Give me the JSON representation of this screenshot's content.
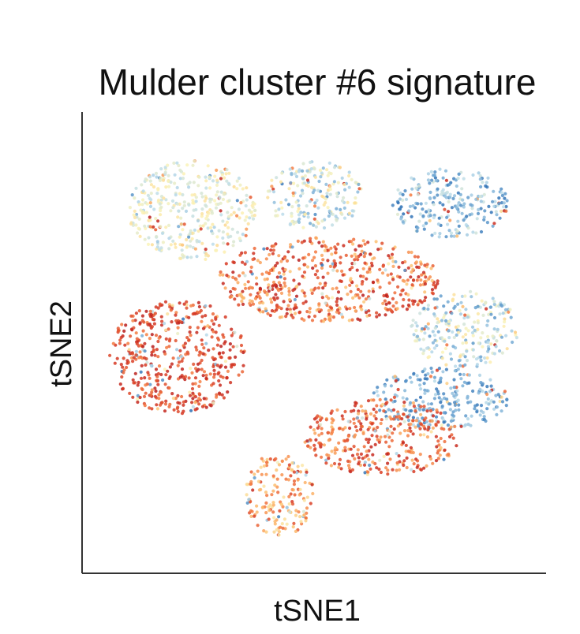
{
  "chart_data": {
    "type": "scatter",
    "title": "Mulder cluster #6 signature",
    "xlabel": "tSNE1",
    "ylabel": "tSNE2",
    "grid": false,
    "legend": "none",
    "ticks": "none",
    "color_scale": [
      "#2c6fb4",
      "#6ea6d2",
      "#bcdcea",
      "#fbf3b8",
      "#fdc374",
      "#f57d43",
      "#d73a24",
      "#b81e1e"
    ],
    "series": [
      {
        "region": "upper-left",
        "x": [
          -38,
          -12
        ],
        "y": [
          14,
          40
        ],
        "level": [
          0.25,
          0.5
        ]
      },
      {
        "region": "upper-center",
        "x": [
          -10,
          10
        ],
        "y": [
          22,
          40
        ],
        "level": [
          0.15,
          0.5
        ]
      },
      {
        "region": "upper-right",
        "x": [
          16,
          40
        ],
        "y": [
          20,
          38
        ],
        "level": [
          0.0,
          0.35
        ]
      },
      {
        "region": "center-band",
        "x": [
          -20,
          26
        ],
        "y": [
          -2,
          20
        ],
        "level": [
          0.55,
          1.0
        ]
      },
      {
        "region": "left-lobe",
        "x": [
          -42,
          -14
        ],
        "y": [
          -26,
          4
        ],
        "level": [
          0.7,
          1.0
        ]
      },
      {
        "region": "right-middle",
        "x": [
          20,
          42
        ],
        "y": [
          -14,
          6
        ],
        "level": [
          0.1,
          0.5
        ]
      },
      {
        "region": "lower-right-arc",
        "x": [
          12,
          40
        ],
        "y": [
          -30,
          -14
        ],
        "level": [
          0.0,
          0.3
        ]
      },
      {
        "region": "lower-center",
        "x": [
          -2,
          30
        ],
        "y": [
          -42,
          -22
        ],
        "level": [
          0.6,
          0.95
        ]
      },
      {
        "region": "bottom-loop",
        "x": [
          -14,
          0
        ],
        "y": [
          -58,
          -36
        ],
        "level": [
          0.45,
          0.85
        ]
      }
    ]
  },
  "edge_char": "^"
}
